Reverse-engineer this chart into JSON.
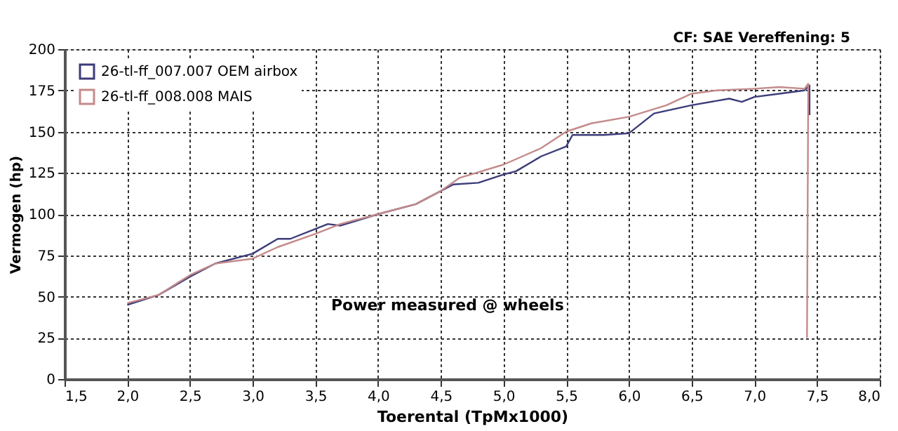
{
  "chart_data": {
    "type": "line",
    "xlabel": "Toerental (TpMx1000)",
    "ylabel": "Vermogen (hp)",
    "annotations": [
      "CF: SAE  Vereffening: 5",
      "Power measured @ wheels"
    ],
    "xlim": [
      1.5,
      8.0
    ],
    "xticks": [
      {
        "value": 1.5,
        "label": "1,5"
      },
      {
        "value": 2.0,
        "label": "2,0"
      },
      {
        "value": 2.5,
        "label": "2,5"
      },
      {
        "value": 3.0,
        "label": "3,0"
      },
      {
        "value": 3.5,
        "label": "3,5"
      },
      {
        "value": 4.0,
        "label": "4,0"
      },
      {
        "value": 4.5,
        "label": "4,5"
      },
      {
        "value": 5.0,
        "label": "5,0"
      },
      {
        "value": 5.5,
        "label": "5,5"
      },
      {
        "value": 6.0,
        "label": "6,0"
      },
      {
        "value": 6.5,
        "label": "6,5"
      },
      {
        "value": 7.0,
        "label": "7,0"
      },
      {
        "value": 7.5,
        "label": "7,5"
      },
      {
        "value": 8.0,
        "label": "8,0"
      }
    ],
    "ylim": [
      0,
      200
    ],
    "yticks": [
      0,
      25,
      50,
      75,
      100,
      125,
      150,
      175,
      200
    ],
    "grid": true,
    "legend": "top left",
    "line_style": "solid",
    "marker": "none",
    "series": [
      {
        "name": "26-tl-ff_007.007 OEM airbox",
        "color": "#3c3c7a",
        "x": [
          2.0,
          2.25,
          2.5,
          2.7,
          3.0,
          3.2,
          3.3,
          3.5,
          3.6,
          3.7,
          4.0,
          4.3,
          4.5,
          4.6,
          4.8,
          5.0,
          5.1,
          5.3,
          5.5,
          5.55,
          5.8,
          6.0,
          6.2,
          6.5,
          6.8,
          6.9,
          7.0,
          7.2,
          7.4,
          7.44,
          7.44
        ],
        "values": [
          45,
          51,
          62,
          70,
          76,
          85,
          85,
          91,
          94,
          93,
          100,
          106,
          114,
          118,
          119,
          124,
          126,
          135,
          141,
          148,
          148,
          149,
          161,
          166,
          170,
          168,
          171,
          173,
          175,
          178,
          160
        ]
      },
      {
        "name": "26-tl-ff_008.008 MAIS",
        "color": "#c48a8a",
        "x": [
          2.0,
          2.25,
          2.5,
          2.7,
          3.0,
          3.2,
          3.5,
          3.7,
          4.0,
          4.3,
          4.5,
          4.65,
          5.0,
          5.3,
          5.5,
          5.7,
          6.0,
          6.3,
          6.5,
          6.7,
          7.0,
          7.2,
          7.4,
          7.43,
          7.42
        ],
        "values": [
          46,
          51,
          63,
          70,
          73,
          80,
          88,
          94,
          100,
          106,
          114,
          122,
          130,
          140,
          150,
          155,
          159,
          166,
          173,
          175,
          176,
          177,
          176,
          179,
          25
        ]
      }
    ]
  }
}
